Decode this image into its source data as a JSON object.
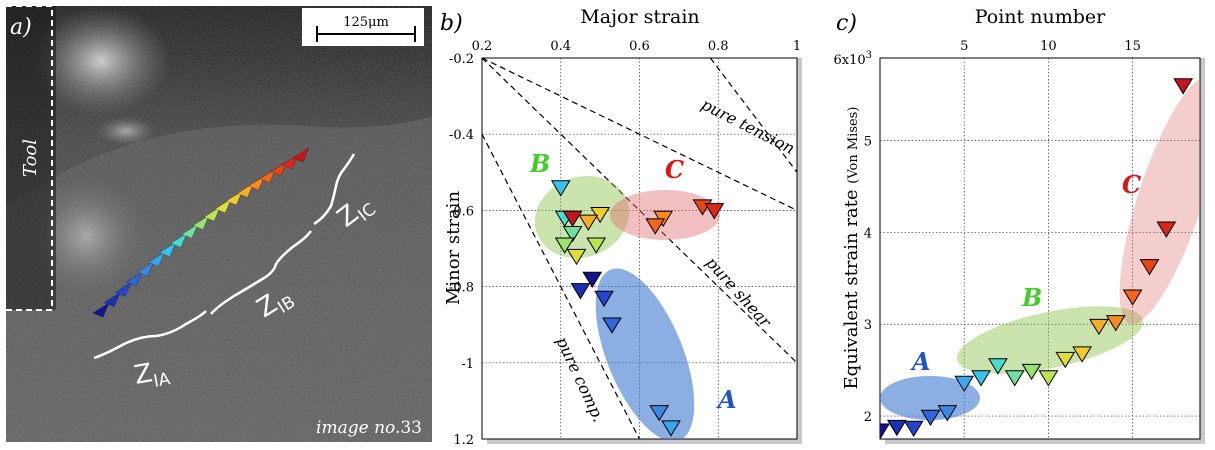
{
  "panel_a": {
    "label": "a)",
    "scale_bar": "125μm",
    "tool_label": "Tool",
    "image_label_prefix": "image no.",
    "image_number": "33",
    "zones": [
      {
        "z": "Z",
        "sub": "IA"
      },
      {
        "z": "Z",
        "sub": "IB"
      },
      {
        "z": "Z",
        "sub": "IC"
      }
    ],
    "point_count": 19
  },
  "colors": [
    "#12138e",
    "#1b2fb3",
    "#2447c9",
    "#2f66d9",
    "#3d86e4",
    "#3aa6ec",
    "#35c4f0",
    "#47dccf",
    "#6fe09f",
    "#98e36e",
    "#bce350",
    "#dcde3c",
    "#f0cc2e",
    "#f9ad24",
    "#f98a1e",
    "#f2651a",
    "#e84416",
    "#d9281a",
    "#c7141c"
  ],
  "chart_data": [
    {
      "type": "scatter",
      "label": "b)",
      "title": "Major strain",
      "xlabel": "",
      "ylabel": "Minor strain",
      "xlim": [
        0.2,
        1.0
      ],
      "ylim": [
        -1.2,
        -0.2
      ],
      "x_ticks": [
        "0.2",
        "0.4",
        "0.6",
        "0.8",
        "1"
      ],
      "y_ticks": [
        "-0.2",
        "-0.4",
        "-0.6",
        "-0.8",
        "-1",
        "1.2"
      ],
      "grid": true,
      "points": [
        {
          "x": 0.48,
          "y": -0.78
        },
        {
          "x": 0.45,
          "y": -0.81
        },
        {
          "x": 0.51,
          "y": -0.83
        },
        {
          "x": 0.53,
          "y": -0.9
        },
        {
          "x": 0.65,
          "y": -1.13
        },
        {
          "x": 0.68,
          "y": -1.17
        },
        {
          "x": 0.4,
          "y": -0.54
        },
        {
          "x": 0.41,
          "y": -0.62
        },
        {
          "x": 0.43,
          "y": -0.66
        },
        {
          "x": 0.41,
          "y": -0.69
        },
        {
          "x": 0.49,
          "y": -0.69
        },
        {
          "x": 0.44,
          "y": -0.72
        },
        {
          "x": 0.5,
          "y": -0.61
        },
        {
          "x": 0.47,
          "y": -0.63
        },
        {
          "x": 0.66,
          "y": -0.62
        },
        {
          "x": 0.64,
          "y": -0.64
        },
        {
          "x": 0.76,
          "y": -0.59
        },
        {
          "x": 0.79,
          "y": -0.6
        },
        {
          "x": 0.43,
          "y": -0.62
        }
      ],
      "reference_lines": [
        {
          "name": "pure tension",
          "from": [
            0.2,
            -0.2
          ],
          "to": [
            1.0,
            -0.6
          ]
        },
        {
          "name": "pure shear",
          "from": [
            0.2,
            -0.2
          ],
          "to": [
            1.0,
            -1.0
          ]
        },
        {
          "name": "pure comp.",
          "from": [
            0.2,
            -0.4
          ],
          "to": [
            0.6,
            -1.2
          ]
        },
        {
          "name": "",
          "from": [
            0.78,
            -0.2
          ],
          "to": [
            1.0,
            -0.5
          ]
        }
      ],
      "groups": [
        {
          "label": "A",
          "color": "#2255c4"
        },
        {
          "label": "B",
          "color": "#3fcf26"
        },
        {
          "label": "C",
          "color": "#e31212"
        }
      ]
    },
    {
      "type": "scatter",
      "label": "c)",
      "title": "Point number",
      "xlabel": "",
      "ylabel": "Equivalent strain rate",
      "ylabel_note": "(Von Mises)",
      "xlim": [
        0,
        19
      ],
      "ylim": [
        1.75,
        5.9
      ],
      "x_ticks": [
        "5",
        "10",
        "15"
      ],
      "y_ticks": [
        "2",
        "3",
        "4",
        "5"
      ],
      "y_top_label": "6x10",
      "y_top_exp": "3",
      "grid": true,
      "values": [
        1.84,
        1.88,
        1.87,
        1.99,
        2.04,
        2.36,
        2.42,
        2.55,
        2.42,
        2.49,
        2.42,
        2.62,
        2.68,
        2.98,
        3.02,
        3.3,
        3.63,
        4.04,
        5.6
      ],
      "groups": [
        {
          "label": "A",
          "color": "#2255c4"
        },
        {
          "label": "B",
          "color": "#3fcf26"
        },
        {
          "label": "C",
          "color": "#e31212"
        }
      ]
    }
  ]
}
